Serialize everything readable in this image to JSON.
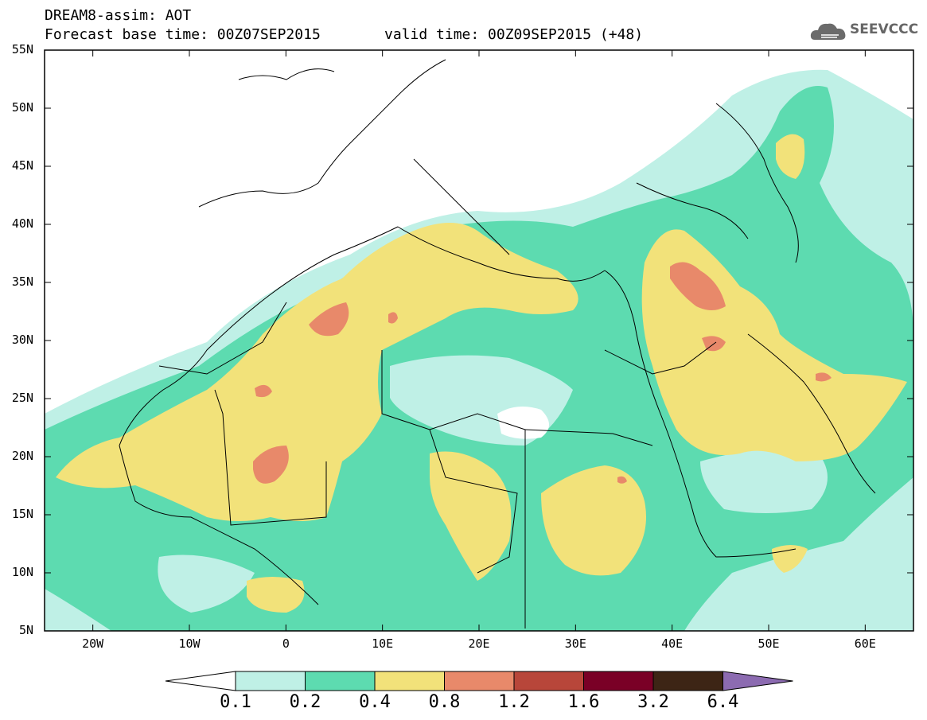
{
  "header": {
    "title_line1": "DREAM8-assim: AOT",
    "title_line2": "Forecast base time: 00Z07SEP2015",
    "valid_time": "valid time: 00Z09SEP2015 (+48)",
    "logo_text": "SEEVCCC"
  },
  "map": {
    "lat_labels": [
      "55N",
      "50N",
      "45N",
      "40N",
      "35N",
      "30N",
      "25N",
      "20N",
      "15N",
      "10N",
      "5N"
    ],
    "lon_labels": [
      "20W",
      "10W",
      "0",
      "10E",
      "20E",
      "30E",
      "40E",
      "50E",
      "60E"
    ],
    "lat_range": [
      5,
      55
    ],
    "lon_range": [
      -25,
      65
    ]
  },
  "colorbar": {
    "labels": [
      "0.1",
      "0.2",
      "0.4",
      "0.8",
      "1.2",
      "1.6",
      "3.2",
      "6.4"
    ],
    "colors": [
      "#bff0e6",
      "#5ddbb0",
      "#f2e27a",
      "#e8896a",
      "#b8463a",
      "#7a0026",
      "#3d2515",
      "#8c6bb1"
    ]
  }
}
